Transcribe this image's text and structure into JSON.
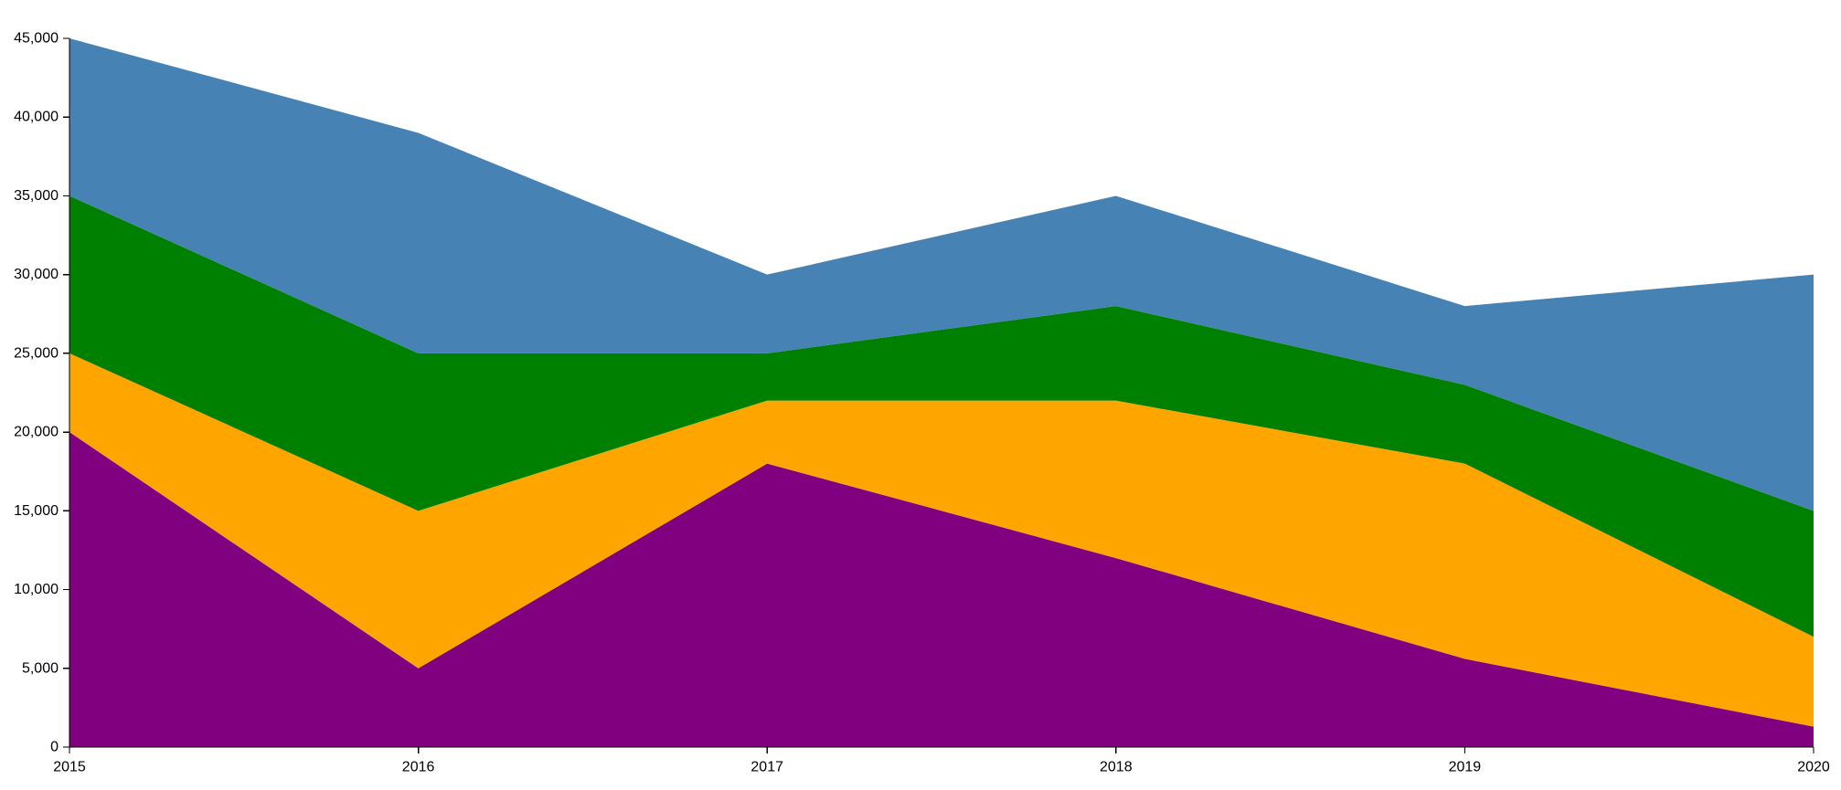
{
  "chart_data": {
    "type": "area",
    "stacked": true,
    "x": [
      2015,
      2016,
      2017,
      2018,
      2019,
      2020
    ],
    "x_tick_labels": [
      "2015",
      "2016",
      "2017",
      "2018",
      "2019",
      "2020"
    ],
    "y_tick_values": [
      0,
      5000,
      10000,
      15000,
      20000,
      25000,
      30000,
      35000,
      40000,
      45000
    ],
    "y_tick_labels": [
      "0",
      "5,000",
      "10,000",
      "15,000",
      "20,000",
      "25,000",
      "30,000",
      "35,000",
      "40,000",
      "45,000"
    ],
    "ylim": [
      0,
      45000
    ],
    "grid": false,
    "legend": "none",
    "series": [
      {
        "color": "#800080",
        "values": [
          20000,
          5000,
          18000,
          12000,
          5600,
          1300
        ]
      },
      {
        "color": "#FFA500",
        "values": [
          5000,
          10000,
          4000,
          10000,
          12400,
          5700
        ]
      },
      {
        "color": "#008000",
        "values": [
          10000,
          10000,
          3000,
          6000,
          5000,
          8000
        ]
      },
      {
        "color": "#4682B4",
        "values": [
          10000,
          14000,
          5000,
          7000,
          5000,
          15000
        ]
      }
    ]
  }
}
